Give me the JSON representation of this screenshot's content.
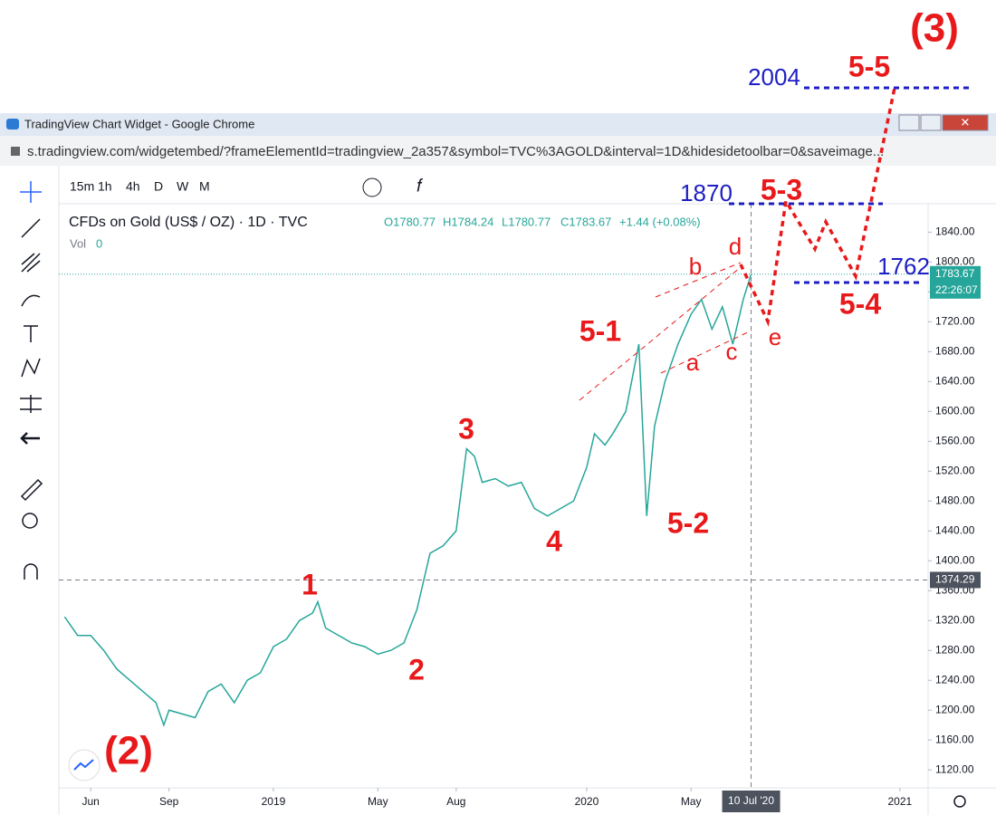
{
  "window": {
    "title": "TradingView Chart Widget - Google Chrome",
    "url": "s.tradingview.com/widgetembed/?frameElementId=tradingview_2a357&symbol=TVC%3AGOLD&interval=1D&hidesidetoolbar=0&saveimage..."
  },
  "toolbar": {
    "intervals": [
      "15m",
      "1h",
      "4h",
      "D",
      "W",
      "M"
    ]
  },
  "legend": {
    "symbol": "CFDs on Gold (US$ / OZ) · 1D · TVC",
    "open": "O1780.77",
    "high": "H1784.24",
    "low": "L1780.77",
    "close": "C1783.67",
    "change": "+1.44 (+0.08%)",
    "volume_label": "Vol",
    "volume": 0
  },
  "chart_data": {
    "type": "line",
    "color": "#26a69a",
    "x": [
      4,
      4.5,
      5,
      5.5,
      6,
      6.5,
      7,
      7.5,
      7.8,
      8,
      8.5,
      9,
      9.5,
      10,
      10.5,
      11,
      11.5,
      12,
      12.5,
      13,
      13.5,
      13.7,
      14,
      14.5,
      15,
      15.5,
      16,
      16.5,
      17,
      17.5,
      18,
      18.5,
      19,
      19.4,
      19.7,
      20,
      20.5,
      21,
      21.5,
      22,
      22.5,
      23,
      23.5,
      24,
      24.3,
      24.7,
      25,
      25.5,
      26,
      26.3,
      26.6,
      27,
      27.5,
      28,
      28.4,
      28.8,
      29.2,
      29.6,
      30,
      30.3
    ],
    "values": [
      1325,
      1300,
      1300,
      1280,
      1255,
      1240,
      1225,
      1210,
      1180,
      1200,
      1195,
      1190,
      1225,
      1235,
      1210,
      1240,
      1250,
      1285,
      1295,
      1320,
      1330,
      1345,
      1310,
      1300,
      1290,
      1285,
      1275,
      1280,
      1290,
      1335,
      1410,
      1420,
      1440,
      1550,
      1540,
      1505,
      1510,
      1500,
      1505,
      1470,
      1460,
      1470,
      1480,
      1525,
      1570,
      1555,
      1570,
      1600,
      1690,
      1460,
      1580,
      1640,
      1690,
      1730,
      1750,
      1710,
      1740,
      1690,
      1750,
      1783.67
    ],
    "xlim": [
      3.78,
      37.08
    ],
    "ylim": [
      1096,
      1878
    ],
    "yticks": [
      {
        "value": 1120,
        "label": "1120.00"
      },
      {
        "value": 1160,
        "label": "1160.00"
      },
      {
        "value": 1200,
        "label": "1200.00"
      },
      {
        "value": 1240,
        "label": "1240.00"
      },
      {
        "value": 1280,
        "label": "1280.00"
      },
      {
        "value": 1320,
        "label": "1320.00"
      },
      {
        "value": 1360,
        "label": "1360.00"
      },
      {
        "value": 1400,
        "label": "1400.00"
      },
      {
        "value": 1440,
        "label": "1440.00"
      },
      {
        "value": 1480,
        "label": "1480.00"
      },
      {
        "value": 1520,
        "label": "1520.00"
      },
      {
        "value": 1560,
        "label": "1560.00"
      },
      {
        "value": 1600,
        "label": "1600.00"
      },
      {
        "value": 1640,
        "label": "1640.00"
      },
      {
        "value": 1680,
        "label": "1680.00"
      },
      {
        "value": 1720,
        "label": "1720.00"
      },
      {
        "value": 1760,
        "label": "1760.00"
      },
      {
        "value": 1800,
        "label": "1800.00"
      },
      {
        "value": 1840,
        "label": "1840.00"
      }
    ],
    "xticks": [
      {
        "value": 5,
        "label": "Jun"
      },
      {
        "value": 8,
        "label": "Sep"
      },
      {
        "value": 12,
        "label": "2019"
      },
      {
        "value": 16,
        "label": "May"
      },
      {
        "value": 19,
        "label": "Aug"
      },
      {
        "value": 24,
        "label": "2020"
      },
      {
        "value": 28,
        "label": "May"
      },
      {
        "value": 36,
        "label": "2021"
      }
    ],
    "last_price": {
      "value": 1783.67,
      "label": "1783.67"
    },
    "countdown": "22:26:07",
    "crosshair_price": {
      "value": 1374.29,
      "label": "1374.29"
    },
    "crosshair_x": {
      "value": 30.3,
      "label": "10 Jul '20"
    }
  },
  "annotations": {
    "w1": "1",
    "w2": "2",
    "w3": "3",
    "w4": "4",
    "w51": "5-1",
    "w52": "5-2",
    "w53": "5-3",
    "w54": "5-4",
    "w55": "5-5",
    "deg2": "(2)",
    "deg3": "(3)",
    "a": "a",
    "b": "b",
    "c": "c",
    "d": "d",
    "e": "e",
    "t2004": "2004",
    "t1870": "1870",
    "t1762": "1762"
  }
}
